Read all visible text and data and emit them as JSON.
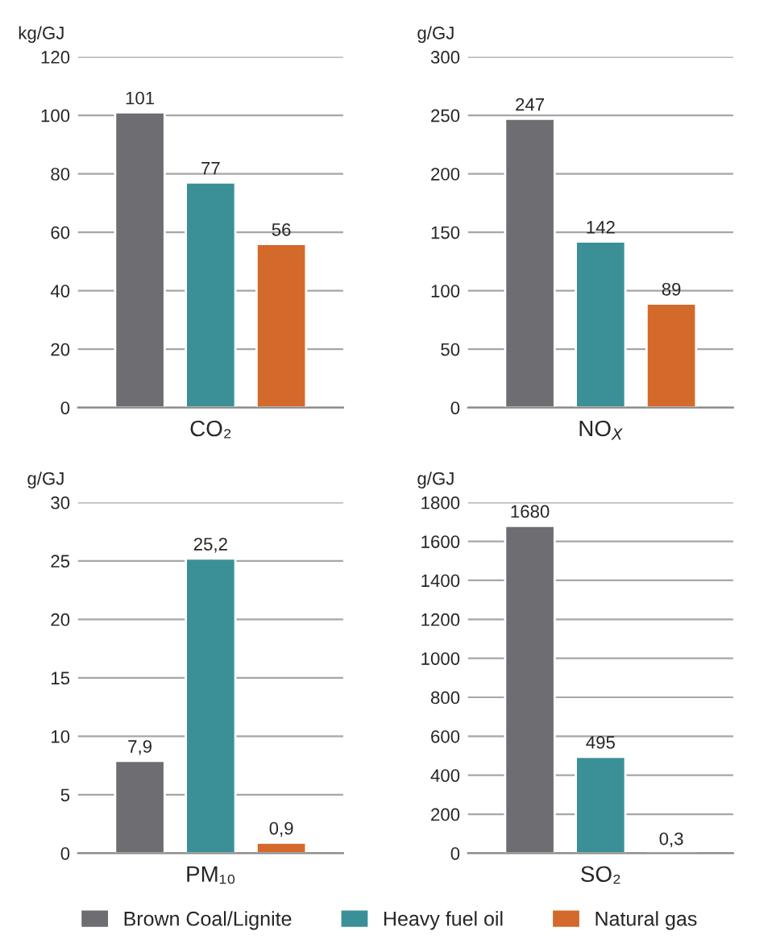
{
  "chart_data": [
    {
      "type": "bar",
      "ylabel": "kg/GJ",
      "xlabel": "CO₂",
      "categories": [
        null
      ],
      "ylim": [
        0,
        120
      ],
      "yticks": [
        0,
        20,
        40,
        60,
        80,
        100,
        120
      ],
      "grid": "y",
      "legend": "bottom",
      "series": [
        {
          "name": "Brown Coal/Lignite",
          "color": "#6e6d72",
          "values": [
            101
          ],
          "value_labels": [
            "101"
          ]
        },
        {
          "name": "Heavy fuel oil",
          "color": "#3b9097",
          "values": [
            77
          ],
          "value_labels": [
            "77"
          ]
        },
        {
          "name": "Natural gas",
          "color": "#d36a2c",
          "values": [
            56
          ],
          "value_labels": [
            "56"
          ]
        }
      ]
    },
    {
      "type": "bar",
      "ylabel": "g/GJ",
      "xlabel": "NO$_{X}$",
      "categories": [
        null
      ],
      "ylim": [
        0,
        300
      ],
      "yticks": [
        0,
        50,
        100,
        150,
        200,
        250,
        300
      ],
      "grid": "y",
      "series": [
        {
          "color": "#6e6d72",
          "values": [
            247
          ],
          "value_labels": [
            "247"
          ]
        },
        {
          "color": "#3b9097",
          "values": [
            142
          ],
          "value_labels": [
            "142"
          ]
        },
        {
          "color": "#d36a2c",
          "values": [
            89
          ],
          "value_labels": [
            "89"
          ]
        }
      ]
    },
    {
      "type": "bar",
      "ylabel": "g/GJ",
      "xlabel": "PM₁₀",
      "categories": [
        null
      ],
      "ylim": [
        0,
        30
      ],
      "yticks": [
        0,
        5,
        10,
        15,
        20,
        25,
        30
      ],
      "grid": "y",
      "series": [
        {
          "color": "#6e6d72",
          "values": [
            7.9
          ],
          "value_labels": [
            "7,9"
          ]
        },
        {
          "color": "#3b9097",
          "values": [
            25.2
          ],
          "value_labels": [
            "25,2"
          ]
        },
        {
          "color": "#d36a2c",
          "values": [
            0.9
          ],
          "value_labels": [
            "0,9"
          ]
        }
      ]
    },
    {
      "type": "bar",
      "ylabel": "g/GJ",
      "xlabel": "SO₂",
      "categories": [
        null
      ],
      "ylim": [
        0,
        1800
      ],
      "yticks": [
        0,
        200,
        400,
        600,
        800,
        1000,
        1200,
        1400,
        1600,
        1800
      ],
      "grid": "y",
      "series": [
        {
          "color": "#6e6d72",
          "values": [
            1680
          ],
          "value_labels": [
            "1680"
          ]
        },
        {
          "color": "#3b9097",
          "values": [
            495
          ],
          "value_labels": [
            "495"
          ]
        },
        {
          "color": "#d36a2c",
          "values": [
            0.3
          ],
          "value_labels": [
            "0,3"
          ]
        }
      ]
    }
  ]
}
